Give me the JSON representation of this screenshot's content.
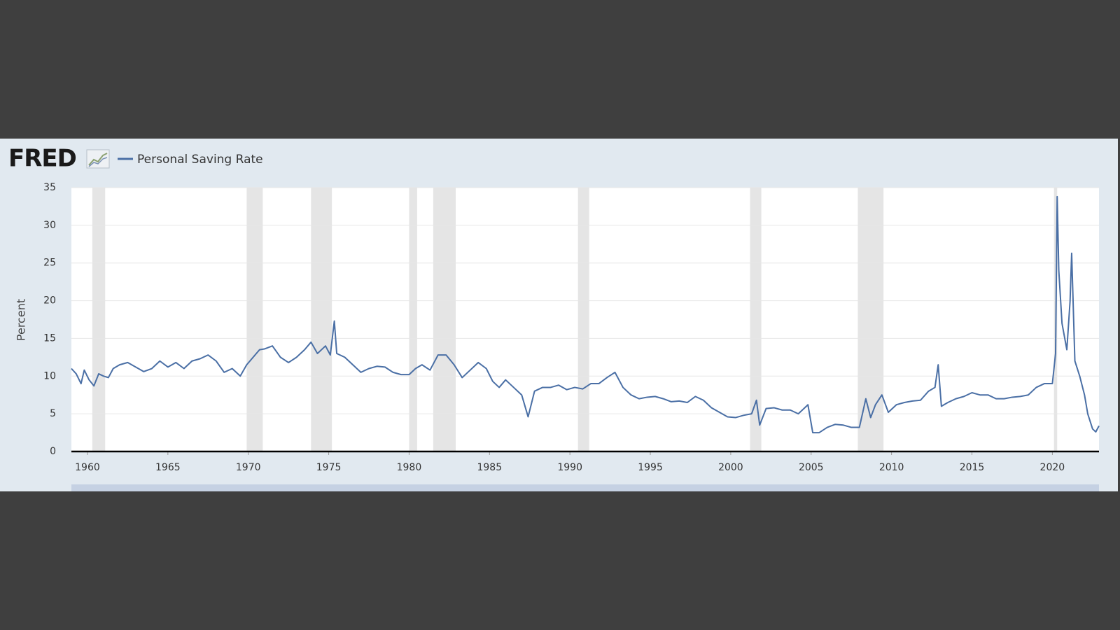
{
  "chart_data": {
    "type": "line",
    "logo": "FRED",
    "y_label": "Percent",
    "series": [
      {
        "name": "Personal Saving Rate",
        "color": "#4a6fa5",
        "values": [
          11,
          10.3,
          9,
          10.8,
          9.5,
          8.7,
          10.3,
          10,
          9.8,
          11,
          11.5,
          11.8,
          11.2,
          10.6,
          11,
          12,
          11.2,
          11.8,
          11,
          12,
          12.3,
          12.8,
          12,
          10.5,
          11,
          10,
          11.5,
          12.5,
          13.5,
          13.6,
          14,
          12.5,
          11.8,
          12.5,
          13.5,
          14.5,
          13,
          14,
          12.8,
          17.3,
          13,
          12.5,
          11.5,
          10.5,
          11,
          11.3,
          11.2,
          10.5,
          10.2,
          10.2,
          11,
          11.5,
          10.8,
          12.8,
          12.8,
          11.5,
          9.8,
          10.8,
          11.8,
          11,
          9.3,
          8.5,
          9.5,
          8.5,
          7.5,
          4.6,
          8,
          8.5,
          8.5,
          8.8,
          8.2,
          8.5,
          8.3,
          9,
          9,
          9.8,
          10.5,
          8.5,
          7.5,
          7,
          7.2,
          7.3,
          7,
          6.6,
          6.7,
          6.5,
          7.3,
          6.8,
          5.8,
          5.2,
          4.6,
          4.5,
          4.8,
          5,
          6.8,
          3.5,
          5.7,
          5.8,
          5.5,
          5.5,
          5,
          6.2,
          2.5,
          2.5,
          3.2,
          3.6,
          3.5,
          3.2,
          3.2,
          7,
          4.5,
          6.2,
          7.5,
          5.2,
          6.2,
          6.5,
          6.7,
          6.8,
          8,
          8.5,
          11.5,
          6,
          6.5,
          7,
          7.3,
          7.8,
          7.5,
          7.5,
          7,
          7,
          7.2,
          7.3,
          7.5,
          8.5,
          9,
          9,
          13,
          33.8,
          24,
          17,
          13.5,
          19.9,
          26.3,
          12,
          10,
          7.5,
          5,
          3,
          2.6,
          3.4
        ]
      }
    ],
    "x": [
      1959.0,
      1959.3,
      1959.6,
      1959.8,
      1960.1,
      1960.4,
      1960.7,
      1961.0,
      1961.3,
      1961.6,
      1962.0,
      1962.5,
      1963.0,
      1963.5,
      1964.0,
      1964.5,
      1965.0,
      1965.5,
      1966.0,
      1966.5,
      1967.0,
      1967.5,
      1968.0,
      1968.5,
      1969.0,
      1969.5,
      1969.9,
      1970.3,
      1970.7,
      1971.0,
      1971.5,
      1972.0,
      1972.5,
      1973.0,
      1973.5,
      1973.9,
      1974.3,
      1974.8,
      1975.1,
      1975.35,
      1975.5,
      1976.0,
      1976.5,
      1977.0,
      1977.5,
      1978.0,
      1978.5,
      1979.0,
      1979.5,
      1980.0,
      1980.4,
      1980.8,
      1981.3,
      1981.8,
      1982.3,
      1982.8,
      1983.3,
      1983.8,
      1984.3,
      1984.8,
      1985.2,
      1985.6,
      1986.0,
      1986.5,
      1987.0,
      1987.4,
      1987.8,
      1988.3,
      1988.8,
      1989.3,
      1989.8,
      1990.3,
      1990.8,
      1991.3,
      1991.8,
      1992.3,
      1992.8,
      1993.3,
      1993.8,
      1994.3,
      1994.8,
      1995.3,
      1995.8,
      1996.3,
      1996.8,
      1997.3,
      1997.8,
      1998.3,
      1998.8,
      1999.3,
      1999.8,
      2000.3,
      2000.8,
      2001.3,
      2001.6,
      2001.8,
      2002.2,
      2002.7,
      2003.2,
      2003.7,
      2004.2,
      2004.8,
      2005.1,
      2005.5,
      2006.0,
      2006.5,
      2007.0,
      2007.5,
      2008.0,
      2008.4,
      2008.7,
      2009.0,
      2009.4,
      2009.8,
      2010.3,
      2010.8,
      2011.3,
      2011.8,
      2012.3,
      2012.7,
      2012.9,
      2013.1,
      2013.5,
      2014.0,
      2014.5,
      2015.0,
      2015.5,
      2016.0,
      2016.5,
      2017.0,
      2017.5,
      2018.0,
      2018.5,
      2019.0,
      2019.5,
      2020.0,
      2020.2,
      2020.3,
      2020.4,
      2020.6,
      2020.9,
      2021.1,
      2021.2,
      2021.4,
      2021.7,
      2022.0,
      2022.2,
      2022.5,
      2022.7,
      2022.9
    ],
    "recessions": [
      [
        1960.3,
        1961.1
      ],
      [
        1969.9,
        1970.9
      ],
      [
        1973.9,
        1975.2
      ],
      [
        1980.0,
        1980.5
      ],
      [
        1981.5,
        1982.9
      ],
      [
        1990.5,
        1991.2
      ],
      [
        2001.2,
        2001.9
      ],
      [
        2007.9,
        2009.5
      ],
      [
        2020.1,
        2020.3
      ]
    ],
    "recession_color": "#e5e5e5",
    "xlim": [
      1959.0,
      2022.9
    ],
    "xticks": [
      1960,
      1965,
      1970,
      1975,
      1980,
      1985,
      1990,
      1995,
      2000,
      2005,
      2010,
      2015,
      2020
    ],
    "ylim": [
      0,
      35
    ],
    "yticks": [
      0,
      5,
      10,
      15,
      20,
      25,
      30,
      35
    ],
    "grid": true
  }
}
